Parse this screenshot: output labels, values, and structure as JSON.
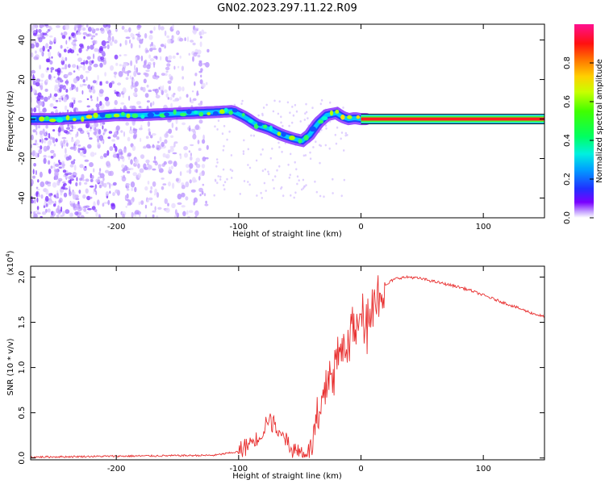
{
  "title": "GN02.2023.297.11.22.R09",
  "chart_data": [
    {
      "type": "heatmap",
      "xlabel": "Height of straight line (km)",
      "ylabel": "Frequency (Hz)",
      "xlim": [
        -270,
        150
      ],
      "ylim": [
        -50,
        48
      ],
      "xticks": [
        -200,
        -100,
        0,
        100
      ],
      "yticks": [
        -40,
        -20,
        0,
        20,
        40
      ],
      "colorbar": {
        "label": "Normalized spectral amplitude",
        "range": [
          0,
          1
        ],
        "ticks": [
          0.0,
          0.2,
          0.4,
          0.6,
          0.8
        ]
      },
      "ridge": {
        "x": [
          -270,
          -250,
          -220,
          -200,
          -180,
          -160,
          -140,
          -120,
          -105,
          -95,
          -85,
          -75,
          -65,
          -55,
          -48,
          -42,
          -35,
          -28,
          -20,
          -15,
          -10,
          -5,
          0,
          50,
          100,
          150
        ],
        "y": [
          0,
          0,
          1,
          2,
          2,
          2.5,
          3,
          3.5,
          4,
          1,
          -3,
          -5,
          -8,
          -10,
          -11,
          -8,
          -2,
          2,
          3,
          1,
          0,
          0.5,
          0,
          0,
          0,
          0
        ]
      }
    },
    {
      "type": "line",
      "xlabel": "Height of straight line (km)",
      "ylabel": "SNR (10 * v/v)",
      "y_multiplier": "(x10",
      "y_multiplier_exp": "4",
      "y_multiplier_close": ")",
      "xlim": [
        -270,
        150
      ],
      "ylim": [
        -0.02,
        2.12
      ],
      "xticks": [
        -200,
        -100,
        0,
        100
      ],
      "yticks": [
        0.0,
        0.5,
        1.0,
        1.5,
        2.0
      ],
      "ytick_labels": [
        "0.0",
        "0.5",
        "1.0",
        "1.5",
        "2.0"
      ],
      "series": [
        {
          "color": "#e83030",
          "x": [
            -270,
            -200,
            -120,
            -110,
            -100,
            -95,
            -90,
            -85,
            -80,
            -76,
            -73,
            -70,
            -67,
            -64,
            -60,
            -56,
            -52,
            -48,
            -44,
            -40,
            -37,
            -34,
            -31,
            -28,
            -25,
            -22,
            -19,
            -16,
            -13,
            -10,
            -7,
            -4,
            -1,
            2,
            5,
            8,
            11,
            14,
            17,
            20,
            25,
            30,
            40,
            50,
            60,
            70,
            80,
            90,
            100,
            110,
            120,
            130,
            140,
            150
          ],
          "y": [
            0.01,
            0.02,
            0.03,
            0.05,
            0.07,
            0.12,
            0.18,
            0.22,
            0.3,
            0.45,
            0.38,
            0.4,
            0.2,
            0.35,
            0.15,
            0.1,
            0.08,
            0.06,
            0.05,
            0.15,
            0.35,
            0.4,
            0.6,
            0.8,
            1.0,
            0.9,
            1.2,
            1.05,
            1.35,
            1.2,
            1.55,
            1.25,
            1.7,
            1.65,
            1.5,
            1.7,
            1.75,
            1.8,
            1.82,
            1.9,
            1.96,
            1.99,
            2.0,
            1.98,
            1.95,
            1.92,
            1.89,
            1.85,
            1.8,
            1.75,
            1.7,
            1.65,
            1.6,
            1.56
          ]
        }
      ]
    }
  ]
}
